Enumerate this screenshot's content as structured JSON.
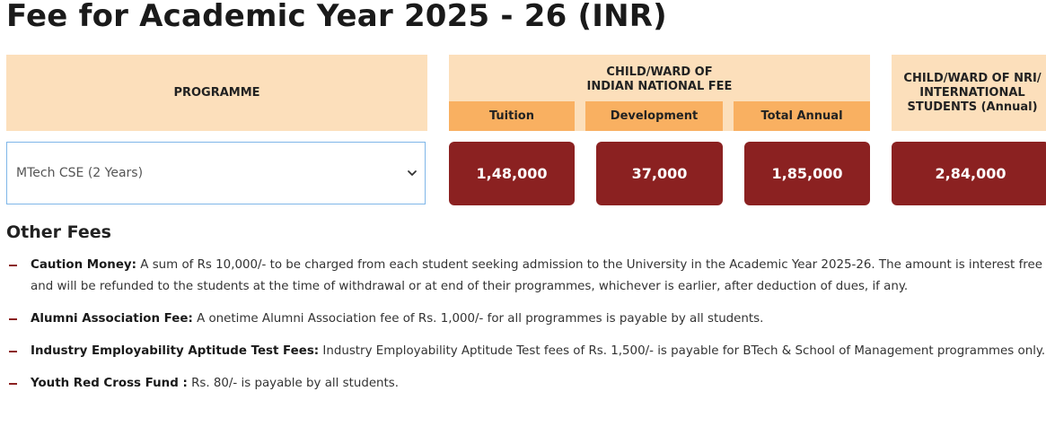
{
  "page_title": "Fee for Academic Year 2025 - 26 (INR)",
  "table": {
    "programme_header": "PROGRAMME",
    "indian_header_line1": "CHILD/WARD OF",
    "indian_header_line2": "INDIAN NATIONAL FEE",
    "sub_headers": [
      "Tuition",
      "Development",
      "Total Annual"
    ],
    "nri_header_line1": "CHILD/WARD OF NRI/",
    "nri_header_line2": "INTERNATIONAL",
    "nri_header_line3": "STUDENTS (Annual)",
    "programme_select_value": "MTech CSE (2 Years)",
    "values": {
      "tuition": "1,48,000",
      "development": "37,000",
      "total_annual": "1,85,000",
      "nri": "2,84,000"
    }
  },
  "other_fees": {
    "title": "Other Fees",
    "items": [
      {
        "label": "Caution Money:",
        "text": " A sum of Rs 10,000/- to be charged from each student seeking admission to the University in the Academic Year 2025-26. The amount is interest free and will be refunded to the students at the time of withdrawal or at end of their programmes, whichever is earlier, after deduction of dues, if any."
      },
      {
        "label": "Alumni Association Fee:",
        "text": " A onetime Alumni Association fee of Rs. 1,000/- for all programmes is payable by all students."
      },
      {
        "label": "Industry Employability Aptitude Test Fees:",
        "text": " Industry Employability Aptitude Test fees of Rs. 1,500/- is payable for BTech & School of Management programmes only."
      },
      {
        "label": "Youth Red Cross Fund :",
        "text": " Rs. 80/- is payable by all students."
      }
    ]
  },
  "colors": {
    "header_light": "#fcdfbb",
    "header_orange": "#f9b061",
    "value_cell": "#8b2121",
    "select_border": "#7fb6e8"
  },
  "icons": {
    "select": "chevron-down-icon",
    "bullet": "dash-bullet-icon"
  }
}
